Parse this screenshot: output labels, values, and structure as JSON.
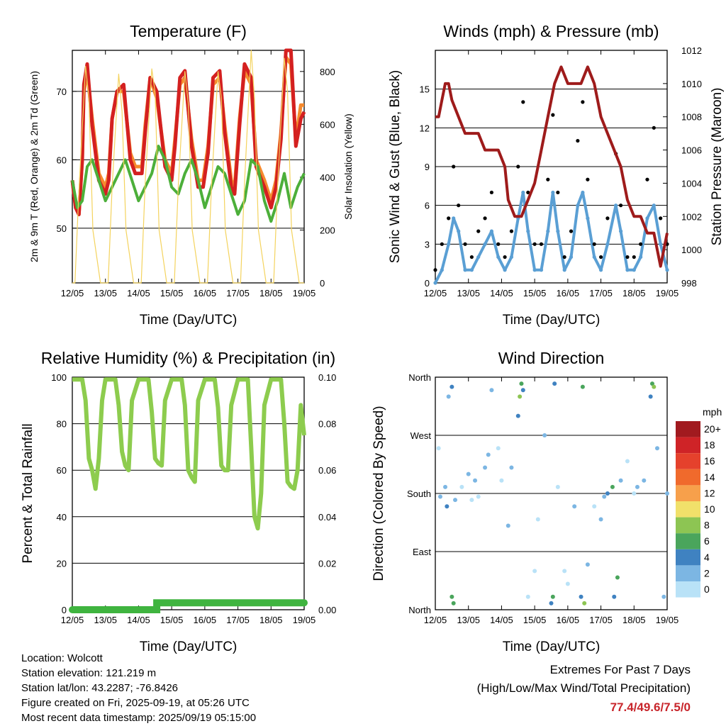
{
  "colors": {
    "t2m": "#d42020",
    "t9m": "#f58a2e",
    "td": "#4caf3a",
    "solar": "#f4d35e",
    "gust": "#000000",
    "wind": "#5a9fd4",
    "pressure": "#9e1b1b",
    "rh": "#8dcc4e",
    "precip": "#3fb43f"
  },
  "chart_data": [
    {
      "id": "temperature",
      "type": "line",
      "title": "Temperature (F)",
      "xlabel": "Time (Day/UTC)",
      "ylabel": "2m & 9m T (Red, Orange) & 2m Td (Green)",
      "y2label": "Solar Insolation (Yellow)",
      "xticks": [
        "12/05",
        "13/05",
        "14/05",
        "15/05",
        "16/05",
        "17/05",
        "18/05",
        "19/05"
      ],
      "xlim": [
        0,
        7
      ],
      "ylim": [
        42,
        76
      ],
      "yticks": [
        50,
        60,
        70
      ],
      "y2lim": [
        0,
        880
      ],
      "y2ticks": [
        0,
        200,
        400,
        600,
        800
      ],
      "series": [
        {
          "key": "t9m",
          "axis": "y",
          "x": [
            0.0,
            0.1,
            0.2,
            0.3,
            0.35,
            0.45,
            0.6,
            0.8,
            1.0,
            1.1,
            1.2,
            1.35,
            1.55,
            1.75,
            1.9,
            2.1,
            2.2,
            2.35,
            2.55,
            2.8,
            3.0,
            3.1,
            3.25,
            3.4,
            3.6,
            3.8,
            3.95,
            4.1,
            4.25,
            4.45,
            4.6,
            4.8,
            4.9,
            5.05,
            5.2,
            5.4,
            5.55,
            5.8,
            6.0,
            6.15,
            6.3,
            6.45,
            6.6,
            6.75,
            6.9,
            7.0
          ],
          "y": [
            57,
            53,
            52,
            60,
            70,
            73,
            66,
            58,
            56,
            58,
            66,
            70,
            70,
            61,
            59,
            59,
            65,
            72,
            69,
            60,
            58,
            63,
            71,
            72,
            63,
            57,
            57,
            62,
            71,
            72,
            65,
            57,
            56,
            66,
            73,
            71,
            60,
            57,
            54,
            57,
            64,
            75,
            74,
            63,
            68,
            68
          ]
        },
        {
          "key": "t2m",
          "axis": "y",
          "x": [
            0.0,
            0.1,
            0.2,
            0.3,
            0.35,
            0.45,
            0.6,
            0.8,
            1.0,
            1.1,
            1.2,
            1.35,
            1.55,
            1.75,
            1.9,
            2.1,
            2.2,
            2.35,
            2.55,
            2.8,
            3.0,
            3.1,
            3.25,
            3.4,
            3.6,
            3.8,
            3.95,
            4.1,
            4.25,
            4.45,
            4.6,
            4.8,
            4.9,
            5.05,
            5.2,
            5.4,
            5.55,
            5.8,
            6.0,
            6.15,
            6.3,
            6.45,
            6.6,
            6.75,
            6.9,
            7.0
          ],
          "y": [
            57,
            53,
            52,
            60,
            71,
            74,
            65,
            57,
            55,
            57,
            66,
            70,
            71,
            60,
            58,
            58,
            64,
            72,
            70,
            59,
            57,
            62,
            72,
            73,
            62,
            56,
            56,
            61,
            72,
            73,
            64,
            56,
            55,
            65,
            74,
            72,
            59,
            56,
            53,
            56,
            63,
            76,
            76,
            62,
            66,
            67
          ]
        },
        {
          "key": "td",
          "axis": "y",
          "x": [
            0.0,
            0.15,
            0.3,
            0.45,
            0.6,
            0.8,
            1.0,
            1.2,
            1.4,
            1.6,
            1.8,
            2.0,
            2.2,
            2.4,
            2.6,
            2.8,
            3.0,
            3.2,
            3.4,
            3.6,
            3.8,
            4.0,
            4.2,
            4.4,
            4.6,
            4.8,
            5.0,
            5.2,
            5.4,
            5.6,
            5.8,
            6.0,
            6.2,
            6.4,
            6.6,
            6.8,
            7.0
          ],
          "y": [
            57,
            53,
            54,
            59,
            60,
            57,
            54,
            56,
            58,
            60,
            57,
            54,
            56,
            58,
            62,
            60,
            56,
            55,
            58,
            60,
            57,
            53,
            56,
            59,
            58,
            55,
            52,
            54,
            60,
            59,
            54,
            51,
            54,
            58,
            53,
            56,
            58
          ]
        },
        {
          "key": "solar",
          "axis": "y2",
          "x": [
            0.0,
            0.08,
            0.2,
            0.4,
            0.5,
            0.62,
            0.85,
            1.08,
            1.2,
            1.4,
            1.5,
            1.62,
            1.85,
            2.08,
            2.2,
            2.4,
            2.5,
            2.62,
            2.85,
            3.08,
            3.2,
            3.4,
            3.5,
            3.62,
            3.85,
            4.08,
            4.2,
            4.4,
            4.5,
            4.62,
            4.85,
            5.08,
            5.2,
            5.4,
            5.5,
            5.62,
            5.85,
            6.08,
            6.2,
            6.4,
            6.5,
            6.62,
            6.85,
            7.0
          ],
          "y": [
            0,
            0,
            350,
            820,
            700,
            200,
            0,
            0,
            360,
            790,
            650,
            200,
            0,
            0,
            380,
            810,
            720,
            200,
            0,
            0,
            370,
            800,
            680,
            200,
            0,
            0,
            360,
            800,
            700,
            200,
            0,
            0,
            380,
            880,
            700,
            200,
            0,
            0,
            370,
            850,
            720,
            200,
            0,
            0
          ]
        }
      ]
    },
    {
      "id": "wind",
      "type": "scatter",
      "title": "Winds (mph) & Pressure (mb)",
      "xlabel": "Time (Day/UTC)",
      "ylabel": "Sonic Wind & Gust (Blue, Black)",
      "y2label": "Station Pressure (Maroon)",
      "xticks": [
        "12/05",
        "13/05",
        "14/05",
        "15/05",
        "16/05",
        "17/05",
        "18/05",
        "19/05"
      ],
      "xlim": [
        0,
        7
      ],
      "ylim": [
        0,
        18
      ],
      "yticks": [
        0,
        3,
        6,
        9,
        12,
        15
      ],
      "y2lim": [
        998,
        1012
      ],
      "y2ticks": [
        998,
        1000,
        1002,
        1004,
        1006,
        1008,
        1010,
        1012
      ],
      "series": [
        {
          "key": "gust",
          "name": "Gust",
          "axis": "y",
          "x": [
            0.0,
            0.2,
            0.4,
            0.55,
            0.7,
            0.9,
            1.1,
            1.3,
            1.5,
            1.7,
            1.9,
            2.1,
            2.3,
            2.5,
            2.65,
            2.8,
            3.0,
            3.2,
            3.4,
            3.55,
            3.7,
            3.9,
            4.1,
            4.3,
            4.45,
            4.6,
            4.8,
            5.0,
            5.2,
            5.45,
            5.6,
            5.8,
            6.0,
            6.2,
            6.4,
            6.6,
            6.8,
            7.0
          ],
          "y": [
            1,
            3,
            5,
            9,
            6,
            3,
            2,
            4,
            5,
            7,
            3,
            2,
            4,
            9,
            14,
            7,
            3,
            3,
            8,
            13,
            7,
            2,
            4,
            11,
            14,
            8,
            3,
            2,
            5,
            10,
            6,
            2,
            2,
            3,
            8,
            12,
            5,
            3
          ]
        },
        {
          "key": "wind",
          "name": "Wind",
          "axis": "y",
          "x": [
            0.0,
            0.2,
            0.4,
            0.55,
            0.7,
            0.9,
            1.1,
            1.3,
            1.5,
            1.7,
            1.9,
            2.1,
            2.3,
            2.5,
            2.65,
            2.8,
            3.0,
            3.2,
            3.4,
            3.55,
            3.7,
            3.9,
            4.1,
            4.3,
            4.45,
            4.6,
            4.8,
            5.0,
            5.2,
            5.45,
            5.6,
            5.8,
            6.0,
            6.2,
            6.4,
            6.6,
            6.8,
            7.0
          ],
          "y": [
            0,
            1,
            3,
            5,
            4,
            1,
            1,
            2,
            3,
            4,
            2,
            1,
            2,
            5,
            7,
            4,
            1,
            1,
            4,
            7,
            4,
            1,
            2,
            6,
            7,
            5,
            2,
            1,
            3,
            6,
            4,
            1,
            1,
            2,
            5,
            6,
            3,
            1
          ]
        },
        {
          "key": "pressure",
          "name": "Pressure",
          "axis": "y2",
          "x": [
            0.0,
            0.1,
            0.2,
            0.3,
            0.4,
            0.5,
            0.7,
            0.9,
            1.1,
            1.3,
            1.5,
            1.7,
            1.9,
            2.1,
            2.2,
            2.4,
            2.6,
            2.8,
            3.0,
            3.2,
            3.4,
            3.6,
            3.8,
            4.0,
            4.2,
            4.4,
            4.6,
            4.8,
            5.0,
            5.2,
            5.4,
            5.6,
            5.8,
            6.0,
            6.2,
            6.4,
            6.6,
            6.7,
            6.8,
            6.9,
            7.0
          ],
          "y": [
            1008,
            1008,
            1009,
            1010,
            1010,
            1009,
            1008,
            1007,
            1007,
            1007,
            1006,
            1006,
            1006,
            1005,
            1003,
            1002,
            1002,
            1003,
            1004,
            1006,
            1008,
            1010,
            1011,
            1010,
            1010,
            1010,
            1011,
            1010,
            1008,
            1007,
            1006,
            1005,
            1003,
            1002,
            1002,
            1001,
            1001,
            1000,
            999,
            1000,
            1001
          ]
        }
      ]
    },
    {
      "id": "humidity",
      "type": "line",
      "title": "Relative Humidity (%) & Precipitation (in)",
      "xlabel": "Time (Day/UTC)",
      "ylabel": "Percent & Total Rainfall",
      "xticks": [
        "12/05",
        "13/05",
        "14/05",
        "15/05",
        "16/05",
        "17/05",
        "18/05",
        "19/05"
      ],
      "xlim": [
        0,
        7
      ],
      "ylim": [
        0,
        100
      ],
      "yticks": [
        0,
        20,
        40,
        60,
        80,
        100
      ],
      "y2lim": [
        0,
        0.1
      ],
      "y2ticks": [
        "0.00",
        "0.02",
        "0.04",
        "0.06",
        "0.08",
        "0.10"
      ],
      "series": [
        {
          "key": "rh",
          "name": "Relative Humidity",
          "axis": "y",
          "x": [
            0.0,
            0.3,
            0.4,
            0.5,
            0.6,
            0.7,
            0.8,
            0.9,
            1.0,
            1.3,
            1.4,
            1.5,
            1.6,
            1.7,
            1.8,
            2.0,
            2.3,
            2.4,
            2.5,
            2.6,
            2.7,
            2.8,
            3.0,
            3.3,
            3.4,
            3.5,
            3.6,
            3.7,
            3.8,
            4.0,
            4.3,
            4.4,
            4.5,
            4.6,
            4.7,
            4.8,
            5.0,
            5.3,
            5.4,
            5.5,
            5.6,
            5.7,
            5.8,
            6.0,
            6.3,
            6.4,
            6.5,
            6.6,
            6.7,
            6.8,
            6.9,
            7.0
          ],
          "y": [
            99,
            99,
            90,
            65,
            60,
            52,
            65,
            90,
            99,
            99,
            88,
            68,
            62,
            60,
            90,
            99,
            99,
            85,
            65,
            63,
            62,
            90,
            99,
            99,
            88,
            60,
            57,
            55,
            90,
            99,
            99,
            87,
            62,
            60,
            60,
            88,
            99,
            99,
            70,
            40,
            35,
            50,
            88,
            99,
            99,
            80,
            55,
            53,
            52,
            60,
            88,
            75
          ]
        },
        {
          "key": "precip",
          "name": "Total Rainfall",
          "axis": "y2",
          "x": [
            0.0,
            2.55,
            2.55,
            7.0
          ],
          "y": [
            0.0,
            0.0,
            0.003,
            0.003
          ]
        }
      ]
    },
    {
      "id": "direction",
      "type": "scatter",
      "title": "Wind Direction",
      "xlabel": "Time (Day/UTC)",
      "ylabel": "Direction (Colored By Speed)",
      "xticks": [
        "12/05",
        "13/05",
        "14/05",
        "15/05",
        "16/05",
        "17/05",
        "18/05",
        "19/05"
      ],
      "xlim": [
        0,
        7
      ],
      "ylim": [
        0,
        360
      ],
      "yticks": [
        "North",
        "East",
        "South",
        "West",
        "North"
      ],
      "legend_title": "mph",
      "legend_labels": [
        "20+",
        "18",
        "16",
        "14",
        "12",
        "10",
        "8",
        "6",
        "4",
        "2",
        "0"
      ],
      "legend_colors": [
        "#a11a1f",
        "#cf2327",
        "#e5412c",
        "#f06a2c",
        "#f7a04b",
        "#f1e06a",
        "#8dc553",
        "#4aa55c",
        "#3f82c1",
        "#7cb6e3",
        "#b9e2f7"
      ],
      "legend_placement": "right",
      "points": {
        "x": [
          0.1,
          0.15,
          0.3,
          0.35,
          0.4,
          0.5,
          0.5,
          0.55,
          0.6,
          0.8,
          1.0,
          1.1,
          1.2,
          1.3,
          1.5,
          1.6,
          1.7,
          1.9,
          2.0,
          2.2,
          2.3,
          2.5,
          2.55,
          2.6,
          2.65,
          2.8,
          3.0,
          3.1,
          3.3,
          3.5,
          3.55,
          3.6,
          3.7,
          3.9,
          4.0,
          4.2,
          4.4,
          4.45,
          4.5,
          4.6,
          4.8,
          5.0,
          5.1,
          5.2,
          5.35,
          5.4,
          5.5,
          5.6,
          5.8,
          6.0,
          6.1,
          6.3,
          6.5,
          6.55,
          6.6,
          6.7,
          6.9,
          7.0
        ],
        "y": [
          250,
          175,
          190,
          160,
          330,
          345,
          20,
          10,
          170,
          190,
          210,
          170,
          200,
          175,
          220,
          240,
          340,
          250,
          200,
          130,
          220,
          300,
          330,
          350,
          340,
          20,
          60,
          140,
          270,
          10,
          20,
          350,
          190,
          60,
          40,
          160,
          20,
          345,
          10,
          70,
          160,
          140,
          175,
          180,
          190,
          20,
          50,
          200,
          230,
          180,
          190,
          200,
          330,
          350,
          345,
          250,
          20,
          180
        ],
        "speed": [
          1,
          2,
          2,
          4,
          3,
          5,
          6,
          7,
          3,
          1,
          2,
          1,
          3,
          1,
          3,
          2,
          3,
          1,
          1,
          2,
          3,
          5,
          8,
          7,
          4,
          1,
          1,
          1,
          2,
          4,
          7,
          5,
          1,
          1,
          1,
          3,
          4,
          6,
          8,
          2,
          1,
          2,
          3,
          5,
          7,
          4,
          6,
          3,
          1,
          1,
          2,
          2,
          4,
          6,
          8,
          2,
          3,
          2
        ]
      }
    }
  ],
  "info": {
    "location": "Location: Wolcott",
    "elevation": "Station elevation: 121.219 m",
    "latlon": "Station lat/lon: 43.2287; -76.8426",
    "created": "Figure created on Fri, 2025-09-19, at 05:26 UTC",
    "recent": "Most recent data timestamp: 2025/09/19 05:15:00",
    "extremes_title": "Extremes For Past 7 Days",
    "extremes_subtitle": "(High/Low/Max Wind/Total Precipitation)",
    "extremes_values": "77.4/49.6/7.5/0",
    "extremes_color": "#c8252b"
  }
}
